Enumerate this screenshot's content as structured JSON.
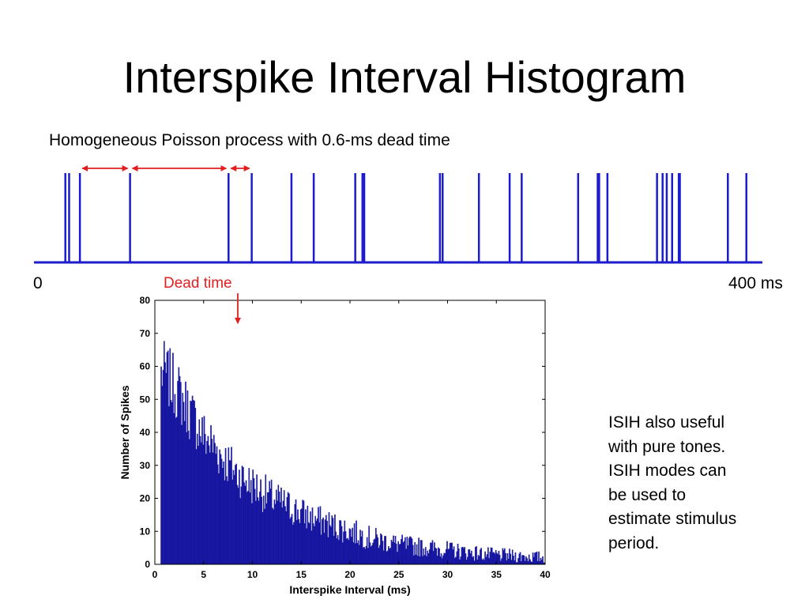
{
  "slide": {
    "title": "Interspike Interval Histogram",
    "subtitle": "Homogeneous Poisson process with 0.6-ms dead time",
    "axis_start": "0",
    "axis_end": "400 ms",
    "dead_time_label": "Dead time",
    "side_note": [
      "ISIH also useful",
      "with pure tones.",
      "ISIH modes can",
      "be used to",
      "estimate stimulus",
      "period."
    ]
  },
  "colors": {
    "spike_train": "#1c1ccc",
    "histogram_bar": "#1a1aa8",
    "annotation_arrow": "#e02020",
    "dead_time_label": "#e02020"
  },
  "spike_train": {
    "window_ms": [
      0,
      400
    ],
    "spike_times_ms": [
      13.5,
      15.6,
      21.6,
      49.5,
      104.3,
      117.2,
      139.3,
      151.7,
      174.8,
      178.8,
      179.8,
      221.9,
      223.4,
      243.6,
      260.7,
      267.4,
      298.8,
      309.7,
      310.5,
      315.1,
      342.7,
      345.8,
      348.1,
      351.1,
      354.8,
      355.4,
      382.1,
      392.4
    ],
    "annotated_intervals": [
      [
        21.6,
        49.5
      ],
      [
        49.5,
        104.3
      ],
      [
        104.3,
        117.2
      ]
    ]
  },
  "chart_data": {
    "type": "bar",
    "title": "",
    "xlabel": "Interspike Interval (ms)",
    "ylabel": "Number of Spikes",
    "xlim": [
      0,
      40
    ],
    "ylim": [
      0,
      80
    ],
    "xticks": [
      0,
      5,
      10,
      15,
      20,
      25,
      30,
      35,
      40
    ],
    "yticks": [
      0,
      10,
      20,
      30,
      40,
      50,
      60,
      70,
      80
    ],
    "bin_width": 0.1,
    "bin_start": 0.6,
    "dead_time_ms": 0.6,
    "dead_time_marker_x": 8.5,
    "approx_counts_by_ms": [
      {
        "x": 1,
        "y": 58
      },
      {
        "x": 2,
        "y": 54
      },
      {
        "x": 3,
        "y": 49
      },
      {
        "x": 4,
        "y": 44
      },
      {
        "x": 5,
        "y": 39
      },
      {
        "x": 6,
        "y": 36
      },
      {
        "x": 7,
        "y": 32
      },
      {
        "x": 8,
        "y": 29
      },
      {
        "x": 9,
        "y": 26
      },
      {
        "x": 10,
        "y": 24
      },
      {
        "x": 12,
        "y": 20
      },
      {
        "x": 14,
        "y": 17
      },
      {
        "x": 16,
        "y": 14
      },
      {
        "x": 18,
        "y": 12
      },
      {
        "x": 20,
        "y": 10
      },
      {
        "x": 22,
        "y": 8
      },
      {
        "x": 25,
        "y": 6
      },
      {
        "x": 28,
        "y": 5
      },
      {
        "x": 31,
        "y": 4
      },
      {
        "x": 34,
        "y": 3
      },
      {
        "x": 37,
        "y": 2.5
      },
      {
        "x": 40,
        "y": 2
      }
    ]
  }
}
